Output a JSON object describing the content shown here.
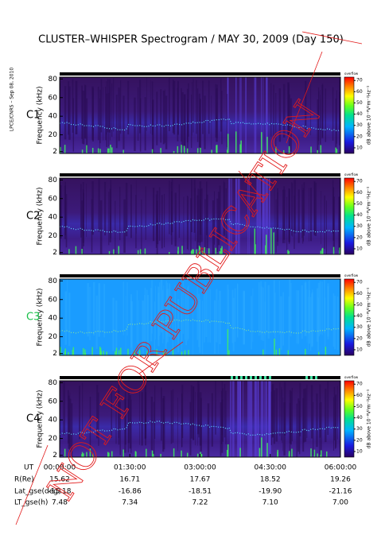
{
  "title": "CLUSTER–WHISPER Spectrogram / MAY 30, 2009 (Day 150)",
  "side_note": "LPCE/CNRS – Sep 08, 2010",
  "watermark": "NOT FOR PUBLICATION",
  "panels": [
    {
      "label": "C1",
      "y_label": "Frequency (kHz)",
      "ylim": [
        0,
        82
      ],
      "yticks": [
        2,
        20,
        40,
        60,
        80
      ],
      "colorbar": {
        "overflow": "overflow",
        "label": "dB above 10⁻⁸V²m⁻²Hz⁻¹",
        "lim": [
          5,
          73
        ],
        "ticks": [
          10,
          20,
          30,
          40,
          50,
          60,
          70
        ]
      }
    },
    {
      "label": "C2",
      "y_label": "Frequency (kHz)",
      "ylim": [
        0,
        82
      ],
      "yticks": [
        2,
        20,
        40,
        60,
        80
      ],
      "colorbar": {
        "overflow": "overflow",
        "label": "dB above 10⁻⁸V²m⁻²Hz⁻¹",
        "lim": [
          5,
          73
        ],
        "ticks": [
          10,
          20,
          30,
          40,
          50,
          60,
          70
        ]
      }
    },
    {
      "label": "C3",
      "y_label": "Frequency (kHz)",
      "ylim": [
        0,
        82
      ],
      "yticks": [
        2,
        20,
        40,
        60,
        80
      ],
      "colorbar": {
        "overflow": "overflow",
        "label": "dB above 10⁻⁸V²m⁻²Hz⁻¹",
        "lim": [
          5,
          73
        ],
        "ticks": [
          10,
          20,
          30,
          40,
          50,
          60,
          70
        ]
      }
    },
    {
      "label": "C4",
      "y_label": "Frequency (kHz)",
      "ylim": [
        0,
        82
      ],
      "yticks": [
        2,
        20,
        40,
        60,
        80
      ],
      "colorbar": {
        "overflow": "overflow",
        "label": "dB above 10⁻⁸V²m⁻²Hz⁻¹",
        "lim": [
          5,
          73
        ],
        "ticks": [
          10,
          20,
          30,
          40,
          50,
          60,
          70
        ]
      }
    }
  ],
  "x_axis": {
    "rows": [
      {
        "label": "UT",
        "values": [
          "00:00:00",
          "01:30:00",
          "03:00:00",
          "04:30:00",
          "06:00:00"
        ]
      },
      {
        "label": "R(Re)",
        "values": [
          "15.62",
          "16.71",
          "17.67",
          "18.52",
          "19.26"
        ]
      },
      {
        "label": "Lat_gse(deg)",
        "values": [
          "-15.18",
          "-16.86",
          "-18.51",
          "-19.90",
          "-21.16"
        ]
      },
      {
        "label": "LT_gse(h)",
        "values": [
          "7.48",
          "7.34",
          "7.22",
          "7.10",
          "7.00"
        ]
      }
    ]
  }
}
